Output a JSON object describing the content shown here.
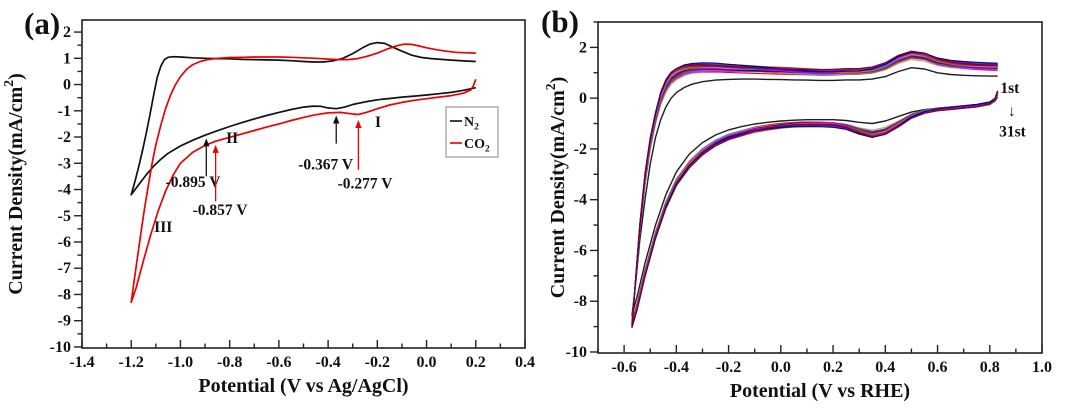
{
  "figure": {
    "background": "#ffffff",
    "panels": [
      {
        "label": "(a)"
      },
      {
        "label": "(b)"
      }
    ]
  },
  "chart_data": [
    {
      "type": "line",
      "panel": "a",
      "xlabel": "Potential (V vs Ag/AgCl)",
      "ylabel": "Current Density(mA/cm²)",
      "xlim": [
        -1.4,
        0.4
      ],
      "ylim": [
        -10.04,
        2.46
      ],
      "xticks": [
        -1.4,
        -1.2,
        -1.0,
        -0.8,
        -0.6,
        -0.4,
        -0.2,
        0.0,
        0.2,
        0.4
      ],
      "yticks": [
        2,
        1,
        0,
        -1,
        -2,
        -3,
        -4,
        -5,
        -6,
        -7,
        -8,
        -9,
        -10
      ],
      "minor_x": 0.1,
      "minor_y": 0.5,
      "grid": false,
      "legend": {
        "position": "right-middle",
        "entries": [
          {
            "label": "N₂",
            "color": "#111111"
          },
          {
            "label": "CO₂",
            "color": "#ee0000"
          }
        ]
      },
      "annotations": [
        {
          "text": "-0.367 V",
          "color": "#111111",
          "x": -0.41,
          "y": -3.05,
          "arrow": {
            "x": -0.367,
            "from": -2.25,
            "to": -1.18
          }
        },
        {
          "text": "-0.277 V",
          "color": "#ee0000",
          "x": -0.25,
          "y": -3.78,
          "arrow": {
            "x": -0.277,
            "from": -3.25,
            "to": -1.35
          }
        },
        {
          "text": "-0.895 V",
          "color": "#111111",
          "x": -0.949,
          "y": -3.72,
          "arrow": {
            "x": -0.895,
            "from": -3.5,
            "to": -2.05
          }
        },
        {
          "text": "-0.857 V",
          "color": "#ee0000",
          "x": -0.839,
          "y": -4.78,
          "arrow": {
            "x": -0.857,
            "from": -4.45,
            "to": -2.3
          }
        },
        {
          "text": "I",
          "color": "#111111",
          "x": -0.197,
          "y": -1.43
        },
        {
          "text": "II",
          "color": "#111111",
          "x": -0.79,
          "y": -2.04
        },
        {
          "text": "III",
          "color": "#111111",
          "x": -1.07,
          "y": -5.43
        }
      ],
      "series": [
        {
          "name": "N2",
          "color": "#111111",
          "points": [
            [
              0.2,
              -0.12
            ],
            [
              0.15,
              -0.22
            ],
            [
              0.1,
              -0.3
            ],
            [
              0.05,
              -0.35
            ],
            [
              0.0,
              -0.4
            ],
            [
              -0.05,
              -0.44
            ],
            [
              -0.1,
              -0.48
            ],
            [
              -0.15,
              -0.53
            ],
            [
              -0.2,
              -0.58
            ],
            [
              -0.25,
              -0.66
            ],
            [
              -0.3,
              -0.76
            ],
            [
              -0.33,
              -0.85
            ],
            [
              -0.367,
              -0.92
            ],
            [
              -0.4,
              -0.89
            ],
            [
              -0.43,
              -0.83
            ],
            [
              -0.46,
              -0.82
            ],
            [
              -0.5,
              -0.86
            ],
            [
              -0.55,
              -0.95
            ],
            [
              -0.6,
              -1.06
            ],
            [
              -0.65,
              -1.18
            ],
            [
              -0.7,
              -1.31
            ],
            [
              -0.75,
              -1.45
            ],
            [
              -0.8,
              -1.6
            ],
            [
              -0.85,
              -1.76
            ],
            [
              -0.9,
              -1.93
            ],
            [
              -0.95,
              -2.12
            ],
            [
              -1.0,
              -2.34
            ],
            [
              -1.05,
              -2.62
            ],
            [
              -1.08,
              -2.85
            ],
            [
              -1.11,
              -3.12
            ],
            [
              -1.14,
              -3.45
            ],
            [
              -1.17,
              -3.82
            ],
            [
              -1.2,
              -4.2
            ],
            [
              -1.185,
              -3.7
            ],
            [
              -1.17,
              -3.15
            ],
            [
              -1.155,
              -2.55
            ],
            [
              -1.14,
              -1.9
            ],
            [
              -1.125,
              -1.2
            ],
            [
              -1.11,
              -0.45
            ],
            [
              -1.095,
              0.25
            ],
            [
              -1.08,
              0.7
            ],
            [
              -1.065,
              0.95
            ],
            [
              -1.05,
              1.04
            ],
            [
              -1.03,
              1.06
            ],
            [
              -1.0,
              1.05
            ],
            [
              -0.95,
              1.02
            ],
            [
              -0.9,
              1.0
            ],
            [
              -0.85,
              0.99
            ],
            [
              -0.8,
              0.98
            ],
            [
              -0.75,
              0.96
            ],
            [
              -0.7,
              0.95
            ],
            [
              -0.65,
              0.94
            ],
            [
              -0.6,
              0.93
            ],
            [
              -0.55,
              0.91
            ],
            [
              -0.5,
              0.88
            ],
            [
              -0.46,
              0.86
            ],
            [
              -0.42,
              0.86
            ],
            [
              -0.38,
              0.9
            ],
            [
              -0.34,
              1.0
            ],
            [
              -0.3,
              1.18
            ],
            [
              -0.26,
              1.4
            ],
            [
              -0.23,
              1.54
            ],
            [
              -0.2,
              1.6
            ],
            [
              -0.17,
              1.57
            ],
            [
              -0.14,
              1.44
            ],
            [
              -0.1,
              1.27
            ],
            [
              -0.06,
              1.12
            ],
            [
              -0.02,
              1.03
            ],
            [
              0.02,
              0.99
            ],
            [
              0.06,
              0.96
            ],
            [
              0.1,
              0.93
            ],
            [
              0.15,
              0.9
            ],
            [
              0.2,
              0.88
            ]
          ]
        },
        {
          "name": "CO2",
          "color": "#ee0000",
          "points": [
            [
              0.2,
              0.2
            ],
            [
              0.19,
              -0.05
            ],
            [
              0.18,
              -0.2
            ],
            [
              0.15,
              -0.33
            ],
            [
              0.1,
              -0.42
            ],
            [
              0.05,
              -0.48
            ],
            [
              0.0,
              -0.54
            ],
            [
              -0.05,
              -0.6
            ],
            [
              -0.1,
              -0.68
            ],
            [
              -0.15,
              -0.78
            ],
            [
              -0.2,
              -0.92
            ],
            [
              -0.24,
              -1.05
            ],
            [
              -0.277,
              -1.14
            ],
            [
              -0.31,
              -1.11
            ],
            [
              -0.35,
              -1.06
            ],
            [
              -0.4,
              -1.08
            ],
            [
              -0.45,
              -1.15
            ],
            [
              -0.5,
              -1.25
            ],
            [
              -0.55,
              -1.37
            ],
            [
              -0.6,
              -1.5
            ],
            [
              -0.65,
              -1.62
            ],
            [
              -0.7,
              -1.75
            ],
            [
              -0.75,
              -1.88
            ],
            [
              -0.8,
              -2.01
            ],
            [
              -0.857,
              -2.16
            ],
            [
              -0.9,
              -2.32
            ],
            [
              -0.95,
              -2.58
            ],
            [
              -1.0,
              -3.0
            ],
            [
              -1.03,
              -3.45
            ],
            [
              -1.06,
              -4.05
            ],
            [
              -1.09,
              -4.8
            ],
            [
              -1.12,
              -5.7
            ],
            [
              -1.15,
              -6.7
            ],
            [
              -1.18,
              -7.75
            ],
            [
              -1.2,
              -8.3
            ],
            [
              -1.19,
              -7.6
            ],
            [
              -1.175,
              -6.6
            ],
            [
              -1.16,
              -5.6
            ],
            [
              -1.145,
              -4.65
            ],
            [
              -1.13,
              -3.8
            ],
            [
              -1.115,
              -3.0
            ],
            [
              -1.1,
              -2.3
            ],
            [
              -1.08,
              -1.55
            ],
            [
              -1.06,
              -0.9
            ],
            [
              -1.04,
              -0.4
            ],
            [
              -1.02,
              0.0
            ],
            [
              -1.0,
              0.3
            ],
            [
              -0.975,
              0.58
            ],
            [
              -0.95,
              0.76
            ],
            [
              -0.92,
              0.88
            ],
            [
              -0.89,
              0.95
            ],
            [
              -0.85,
              1.0
            ],
            [
              -0.8,
              1.03
            ],
            [
              -0.75,
              1.04
            ],
            [
              -0.7,
              1.05
            ],
            [
              -0.65,
              1.05
            ],
            [
              -0.6,
              1.05
            ],
            [
              -0.55,
              1.04
            ],
            [
              -0.5,
              1.02
            ],
            [
              -0.45,
              1.0
            ],
            [
              -0.4,
              0.97
            ],
            [
              -0.36,
              0.95
            ],
            [
              -0.32,
              0.95
            ],
            [
              -0.28,
              0.99
            ],
            [
              -0.24,
              1.08
            ],
            [
              -0.2,
              1.2
            ],
            [
              -0.16,
              1.35
            ],
            [
              -0.12,
              1.48
            ],
            [
              -0.09,
              1.54
            ],
            [
              -0.06,
              1.53
            ],
            [
              -0.03,
              1.47
            ],
            [
              0.0,
              1.4
            ],
            [
              0.04,
              1.33
            ],
            [
              0.08,
              1.27
            ],
            [
              0.12,
              1.23
            ],
            [
              0.16,
              1.21
            ],
            [
              0.2,
              1.2
            ]
          ]
        }
      ]
    },
    {
      "type": "line",
      "panel": "b",
      "xlabel": "Potential (V vs RHE)",
      "ylabel": "Current Density(mA/cm²)",
      "xlim": [
        -0.7,
        1.0
      ],
      "ylim": [
        -10.04,
        3.0
      ],
      "xticks": [
        -0.6,
        -0.4,
        -0.2,
        0.0,
        0.2,
        0.4,
        0.6,
        0.8,
        1.0
      ],
      "yticks": [
        2,
        0,
        -2,
        -4,
        -6,
        -8,
        -10
      ],
      "minor_x": 0.1,
      "minor_y": 1,
      "grid": false,
      "cycles": {
        "count": 31,
        "first_label": "1st",
        "arrow_glyph": "↓",
        "last_label": "31st",
        "first_color": "#111111",
        "palette": [
          "#e60000",
          "#fa8072",
          "#2e6bff",
          "#ff00ff",
          "#808000",
          "#ff8c00",
          "#00868b",
          "#da70d6",
          "#0000cd",
          "#8b008b",
          "#4169e1",
          "#9400d3",
          "#b22222",
          "#00008b",
          "#7a0026"
        ]
      },
      "annotations": [
        {
          "text": "1st",
          "color": "#111111",
          "x": 0.877,
          "y": 0.4
        },
        {
          "text": "↓",
          "color": "#111111",
          "x": 0.884,
          "y": -0.5
        },
        {
          "text": "31st",
          "color": "#111111",
          "x": 0.887,
          "y": -1.32
        }
      ],
      "series_range": {
        "x_lower": [
          0.83,
          0.82,
          0.8,
          0.75,
          0.7,
          0.65,
          0.6,
          0.55,
          0.5,
          0.45,
          0.4,
          0.35,
          0.3,
          0.25,
          0.2,
          0.15,
          0.1,
          0.05,
          0.0,
          -0.05,
          -0.1,
          -0.15,
          -0.2,
          -0.25,
          -0.3,
          -0.35,
          -0.4,
          -0.44,
          -0.48,
          -0.52,
          -0.55,
          -0.57
        ],
        "x_upper": [
          -0.57,
          -0.555,
          -0.54,
          -0.52,
          -0.5,
          -0.48,
          -0.46,
          -0.44,
          -0.42,
          -0.4,
          -0.37,
          -0.34,
          -0.3,
          -0.25,
          -0.2,
          -0.15,
          -0.1,
          -0.05,
          0.0,
          0.05,
          0.1,
          0.15,
          0.2,
          0.25,
          0.3,
          0.35,
          0.4,
          0.45,
          0.5,
          0.55,
          0.6,
          0.65,
          0.7,
          0.75,
          0.8,
          0.83
        ],
        "first_lower_y": [
          0.05,
          -0.12,
          -0.22,
          -0.28,
          -0.32,
          -0.36,
          -0.4,
          -0.45,
          -0.55,
          -0.72,
          -0.9,
          -1.0,
          -0.95,
          -0.88,
          -0.85,
          -0.85,
          -0.85,
          -0.87,
          -0.9,
          -0.95,
          -1.02,
          -1.12,
          -1.25,
          -1.45,
          -1.75,
          -2.2,
          -2.9,
          -3.8,
          -5.0,
          -6.5,
          -7.8,
          -8.55
        ],
        "first_upper_y": [
          -8.55,
          -7.2,
          -5.6,
          -4.0,
          -2.6,
          -1.55,
          -0.85,
          -0.35,
          0.0,
          0.22,
          0.42,
          0.55,
          0.65,
          0.71,
          0.74,
          0.75,
          0.75,
          0.74,
          0.73,
          0.72,
          0.71,
          0.7,
          0.7,
          0.72,
          0.72,
          0.75,
          0.85,
          1.05,
          1.2,
          1.15,
          1.0,
          0.93,
          0.9,
          0.88,
          0.87,
          0.87
        ],
        "last_lower_y": [
          0.25,
          -0.05,
          -0.2,
          -0.3,
          -0.35,
          -0.4,
          -0.45,
          -0.55,
          -0.75,
          -1.1,
          -1.4,
          -1.52,
          -1.38,
          -1.18,
          -1.1,
          -1.08,
          -1.08,
          -1.1,
          -1.15,
          -1.22,
          -1.3,
          -1.45,
          -1.6,
          -1.85,
          -2.2,
          -2.7,
          -3.4,
          -4.3,
          -5.5,
          -7.0,
          -8.3,
          -9.0
        ],
        "last_upper_y": [
          -9.0,
          -7.0,
          -5.0,
          -3.0,
          -1.6,
          -0.6,
          0.2,
          0.7,
          1.0,
          1.15,
          1.28,
          1.33,
          1.35,
          1.34,
          1.3,
          1.27,
          1.24,
          1.21,
          1.18,
          1.15,
          1.12,
          1.1,
          1.1,
          1.12,
          1.12,
          1.18,
          1.35,
          1.65,
          1.82,
          1.75,
          1.55,
          1.45,
          1.4,
          1.37,
          1.35,
          1.35
        ]
      }
    }
  ]
}
